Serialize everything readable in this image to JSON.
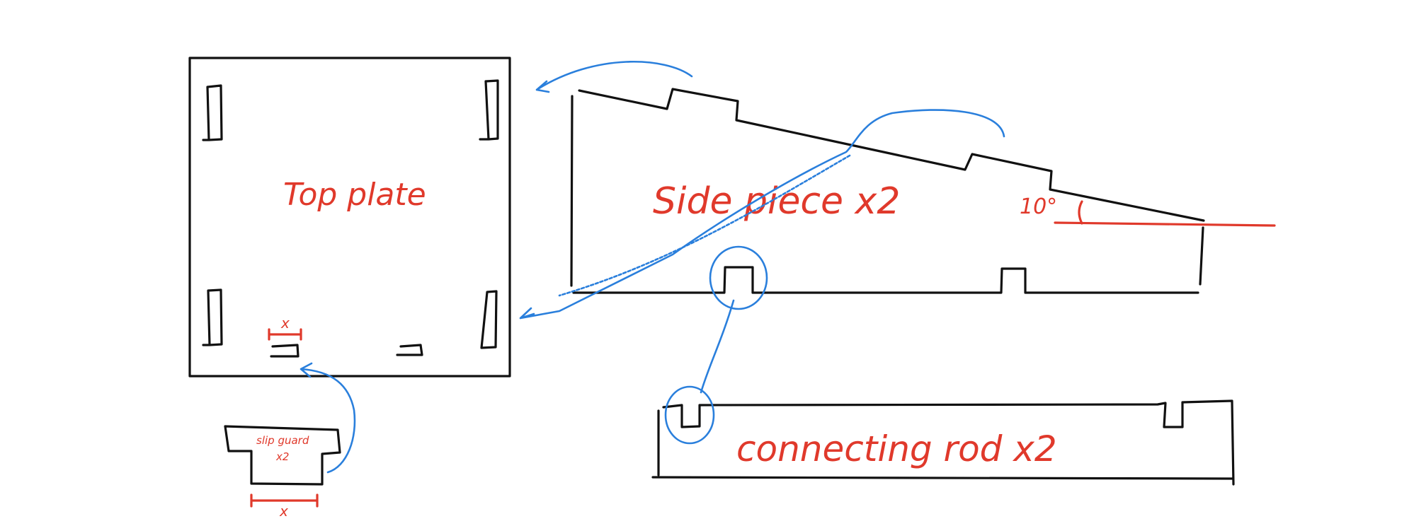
{
  "labels": {
    "top_plate": "Top plate",
    "side_piece": "Side piece x2",
    "angle": "10°",
    "connecting_rod": "connecting rod x2",
    "slip_guard_line1": "slip guard",
    "slip_guard_line2": "x2",
    "dimension_top": "x",
    "dimension_bottom": "x"
  },
  "colors": {
    "outline": "#111111",
    "annotation": "#e0392b",
    "connector": "#2a7fdc"
  }
}
